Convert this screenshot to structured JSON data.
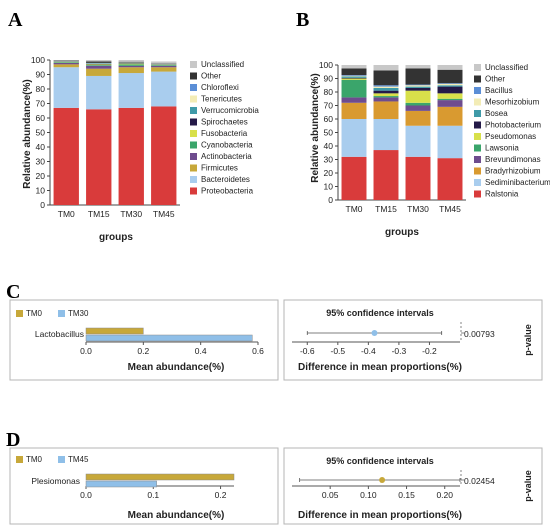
{
  "panels": {
    "a": "A",
    "b": "B",
    "c": "C",
    "d": "D"
  },
  "chart_data": [
    {
      "type": "bar",
      "stacked": true,
      "categories": [
        "TM0",
        "TM15",
        "TM30",
        "TM45"
      ],
      "xlabel": "groups",
      "ylabel": "Relative abundance(%)",
      "ylim": [
        0,
        100
      ],
      "yticks": [
        0,
        10,
        20,
        30,
        40,
        50,
        60,
        70,
        80,
        90,
        100
      ],
      "legend_placement": "right",
      "series": [
        {
          "name": "Proteobacteria",
          "color": "#d93b3b",
          "values": [
            67,
            66,
            67,
            68
          ]
        },
        {
          "name": "Bacteroidetes",
          "color": "#a9cdee",
          "values": [
            28,
            23,
            24,
            24
          ]
        },
        {
          "name": "Firmicutes",
          "color": "#c7a83a",
          "values": [
            2,
            5,
            4,
            3
          ]
        },
        {
          "name": "Actinobacteria",
          "color": "#6e4c8e",
          "values": [
            1,
            2,
            1,
            1
          ]
        },
        {
          "name": "Cyanobacteria",
          "color": "#3aa56b",
          "values": [
            0.5,
            0.5,
            1,
            0.5
          ]
        },
        {
          "name": "Fusobacteria",
          "color": "#d8e04a",
          "values": [
            0.3,
            0.5,
            0.5,
            0.3
          ]
        },
        {
          "name": "Spirochaetes",
          "color": "#241a48",
          "values": [
            0.2,
            0.3,
            0.3,
            0.2
          ]
        },
        {
          "name": "Verrucomicrobia",
          "color": "#3f9aa8",
          "values": [
            0.2,
            0.3,
            0.2,
            0.2
          ]
        },
        {
          "name": "Tenericutes",
          "color": "#f3ecb6",
          "values": [
            0.1,
            0.2,
            0.2,
            0.1
          ]
        },
        {
          "name": "Chloroflexi",
          "color": "#5b8ed6",
          "values": [
            0.1,
            0.2,
            0.1,
            0.1
          ]
        },
        {
          "name": "Other",
          "color": "#333333",
          "values": [
            0.3,
            1,
            0.5,
            0.3
          ]
        },
        {
          "name": "Unclassified",
          "color": "#c8c8c8",
          "values": [
            0.3,
            1,
            1.2,
            1.3
          ]
        }
      ]
    },
    {
      "type": "bar",
      "stacked": true,
      "categories": [
        "TM0",
        "TM15",
        "TM30",
        "TM45"
      ],
      "xlabel": "groups",
      "ylabel": "Relative abundance(%)",
      "ylim": [
        0,
        100
      ],
      "yticks": [
        0,
        10,
        20,
        30,
        40,
        50,
        60,
        70,
        80,
        90,
        100
      ],
      "legend_placement": "right",
      "series": [
        {
          "name": "Ralstonia",
          "color": "#d93b3b",
          "values": [
            32,
            37,
            32,
            31
          ]
        },
        {
          "name": "Sediminibacterium",
          "color": "#a9cdee",
          "values": [
            28,
            23,
            23,
            24
          ]
        },
        {
          "name": "Bradyrhizobium",
          "color": "#d99a30",
          "values": [
            12,
            13,
            11,
            14
          ]
        },
        {
          "name": "Brevundimonas",
          "color": "#6e4c8e",
          "values": [
            4,
            3,
            4,
            5
          ]
        },
        {
          "name": "Lawsonia",
          "color": "#3aa56b",
          "values": [
            13,
            1,
            2,
            1
          ]
        },
        {
          "name": "Pseudomonas",
          "color": "#d8e04a",
          "values": [
            1,
            2,
            9,
            4
          ]
        },
        {
          "name": "Photobacterium",
          "color": "#241a48",
          "values": [
            0.5,
            2,
            2,
            5
          ]
        },
        {
          "name": "Bosea",
          "color": "#3f9aa8",
          "values": [
            1,
            2,
            1,
            1
          ]
        },
        {
          "name": "Mesorhizobium",
          "color": "#f3ecb6",
          "values": [
            0.5,
            1,
            1,
            1
          ]
        },
        {
          "name": "Bacillus",
          "color": "#5b8ed6",
          "values": [
            0.5,
            1,
            0.5,
            0.5
          ]
        },
        {
          "name": "Other",
          "color": "#333333",
          "values": [
            5,
            11,
            12,
            10
          ]
        },
        {
          "name": "Unclassified",
          "color": "#c8c8c8",
          "values": [
            2.5,
            4,
            2.5,
            3.5
          ]
        }
      ]
    },
    {
      "type": "bar",
      "orientation": "horizontal",
      "legend": [
        {
          "name": "TM0",
          "color": "#c7a83a"
        },
        {
          "name": "TM30",
          "color": "#8fbfe8"
        }
      ],
      "taxon": "Lactobacillus",
      "values": [
        0.2,
        0.58
      ],
      "xlim": [
        0,
        0.6
      ],
      "xticks": [
        0.0,
        0.2,
        0.4,
        0.6
      ],
      "xlabel": "Mean abundance(%)",
      "ci_title": "95% confidence intervals",
      "ci_xlabel": "Difference in mean proportions(%)",
      "ci_xlim": [
        -0.65,
        -0.1
      ],
      "ci_xticks": [
        -0.6,
        -0.5,
        -0.4,
        -0.3,
        -0.2
      ],
      "ci_estimate": -0.38,
      "ci_low": -0.6,
      "ci_high": -0.16,
      "ci_color": "#8fbfe8",
      "p_value": "0.00793",
      "p_label": "p-value"
    },
    {
      "type": "bar",
      "orientation": "horizontal",
      "legend": [
        {
          "name": "TM0",
          "color": "#c7a83a"
        },
        {
          "name": "TM45",
          "color": "#8fbfe8"
        }
      ],
      "taxon": "Plesiomonas",
      "values": [
        0.22,
        0.105
      ],
      "xlim": [
        0,
        0.22
      ],
      "xticks": [
        0.0,
        0.1,
        0.2
      ],
      "xlabel": "Mean abundance(%)",
      "ci_title": "95% confidence intervals",
      "ci_xlabel": "Difference in mean proportions(%)",
      "ci_xlim": [
        0.0,
        0.22
      ],
      "ci_xticks": [
        0.05,
        0.1,
        0.15,
        0.2
      ],
      "ci_xtick_labels": [
        "0.05",
        "0.10",
        "0.15",
        "0.20"
      ],
      "ci_estimate": 0.118,
      "ci_low": 0.01,
      "ci_high": 0.22,
      "ci_color": "#c7a83a",
      "p_value": "0.02454",
      "p_label": "p-value"
    }
  ]
}
